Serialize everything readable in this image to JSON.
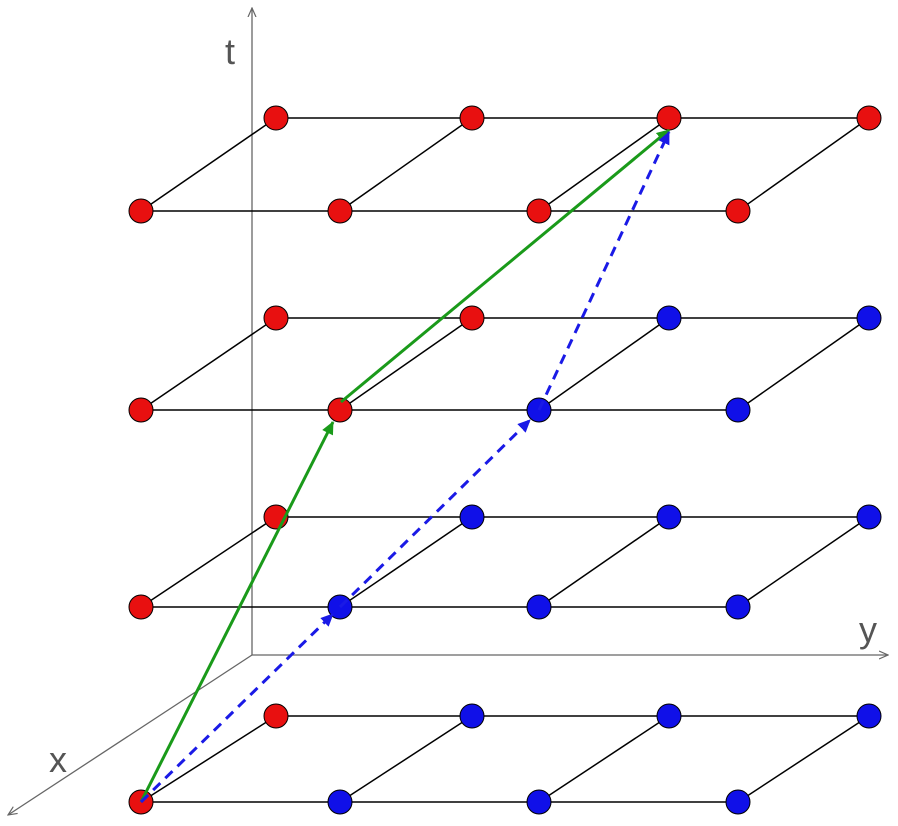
{
  "axes": {
    "t": "t",
    "y": "y",
    "x": "x"
  }
}
